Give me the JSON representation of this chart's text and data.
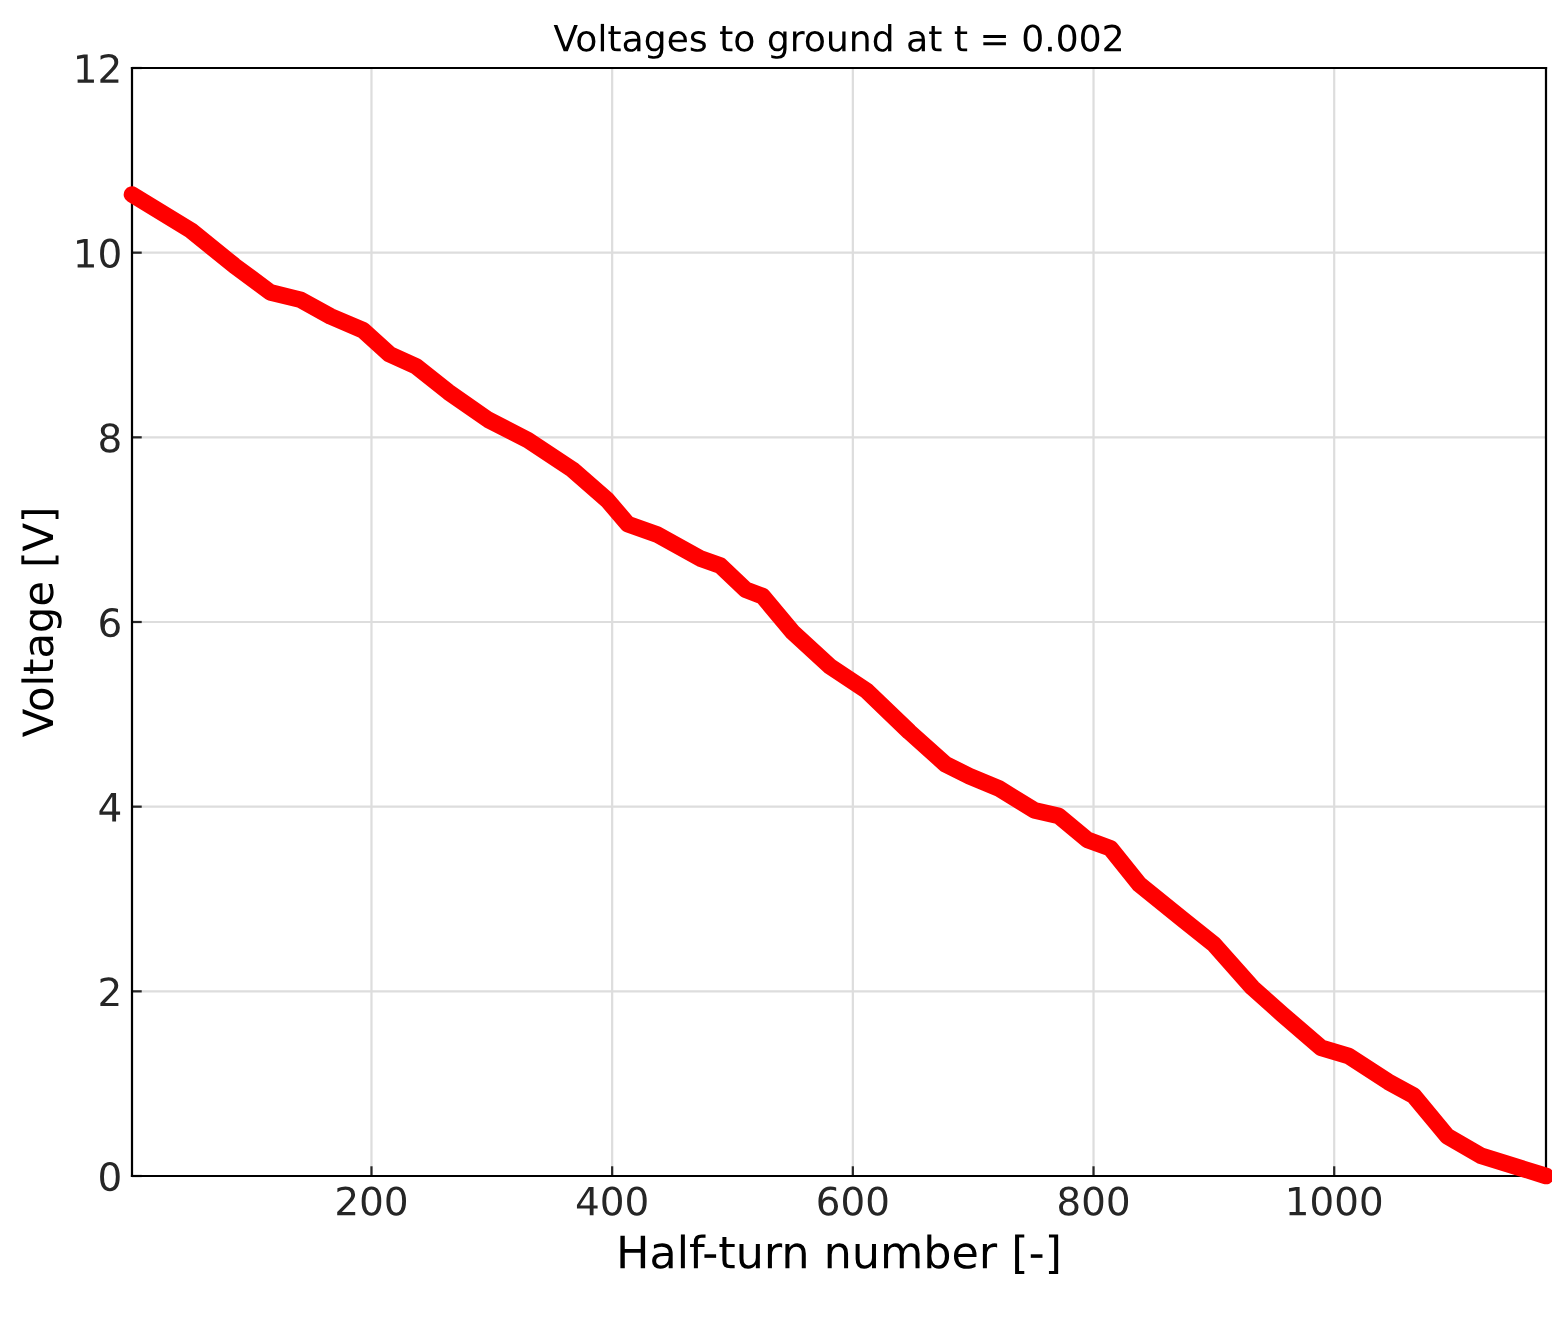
{
  "chart_data": {
    "type": "line",
    "title": "Voltages to ground at t = 0.002",
    "xlabel": "Half-turn number [-]",
    "ylabel": "Voltage [V]",
    "series": [
      {
        "color": "#ff0000",
        "x": [
          1,
          50,
          86,
          116,
          141,
          166,
          193,
          215,
          237,
          264,
          297,
          330,
          367,
          396,
          413,
          437,
          473,
          490,
          511,
          525,
          550,
          581,
          611,
          647,
          677,
          697,
          721,
          751,
          771,
          795,
          814,
          838,
          875,
          900,
          932,
          957,
          989,
          1012,
          1045,
          1066,
          1094,
          1122,
          1176
        ],
        "values": [
          10.63,
          10.24,
          9.86,
          9.57,
          9.49,
          9.31,
          9.16,
          8.9,
          8.77,
          8.49,
          8.19,
          7.97,
          7.65,
          7.32,
          7.06,
          6.95,
          6.69,
          6.61,
          6.35,
          6.28,
          5.89,
          5.52,
          5.26,
          4.81,
          4.46,
          4.33,
          4.2,
          3.96,
          3.9,
          3.64,
          3.55,
          3.16,
          2.77,
          2.51,
          2.04,
          1.75,
          1.39,
          1.3,
          1.02,
          0.87,
          0.43,
          0.22,
          0
        ]
      }
    ],
    "xlim": [
      1,
      1176
    ],
    "ylim": [
      0,
      12
    ],
    "xticks": [
      200,
      400,
      600,
      800,
      1000
    ],
    "yticks": [
      0,
      2,
      4,
      6,
      8,
      10,
      12
    ],
    "grid": true,
    "line_style": "solid",
    "marker": "none"
  }
}
